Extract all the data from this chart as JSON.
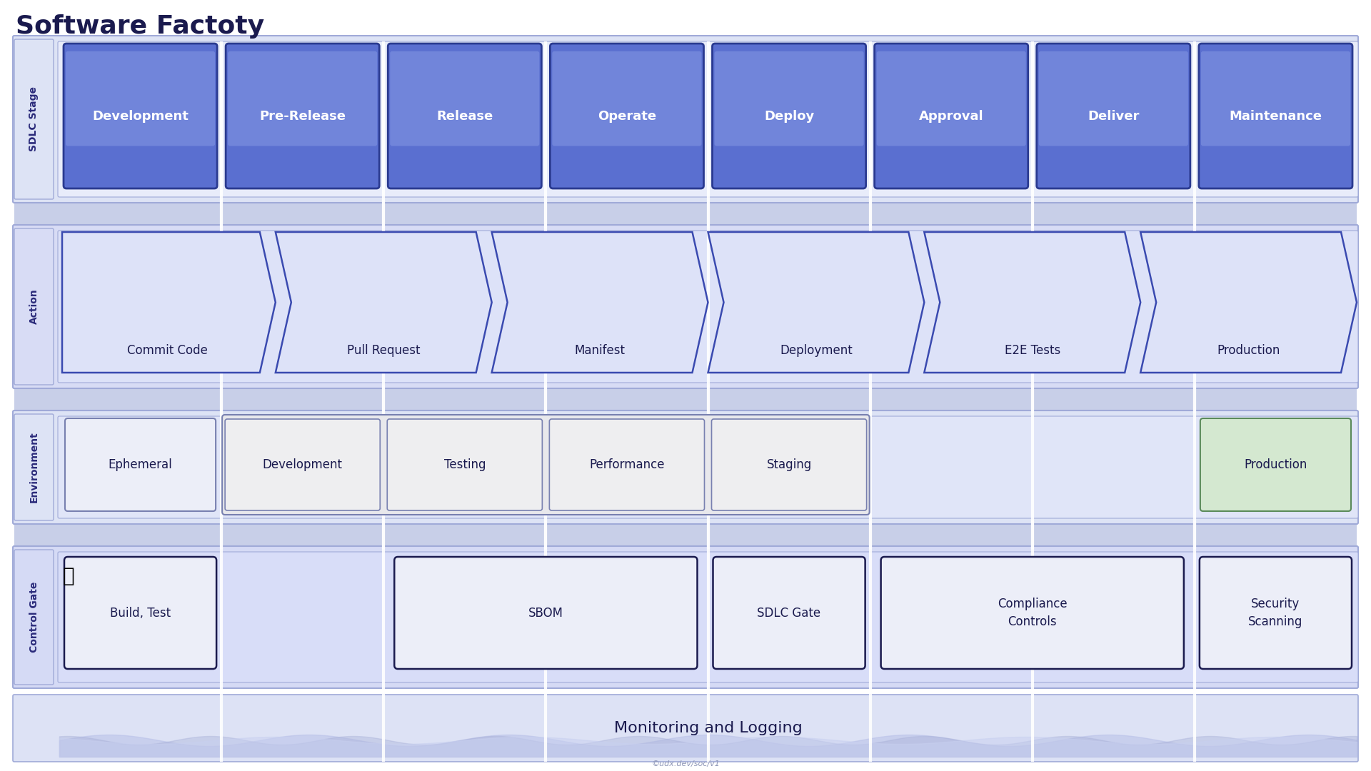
{
  "title": "Software Factoty",
  "title_color": "#1a1a4e",
  "title_fontsize": 26,
  "bg_color": "#ffffff",
  "sdlc_stages": [
    "Development",
    "Pre-Release",
    "Release",
    "Operate",
    "Deploy",
    "Approval",
    "Deliver",
    "Maintenance"
  ],
  "sdlc_row_bg": "#dde3f5",
  "sdlc_row_inner_bg": "#e8ecfa",
  "sdlc_box_color_top": "#7b8fdf",
  "sdlc_box_color_bot": "#5a6fd0",
  "sdlc_box_border": "#2a3a90",
  "sdlc_text_color": "#ffffff",
  "action_row_bg": "#d8dcf5",
  "action_row_inner_bg": "#dde2f8",
  "action_items": [
    "Commit Code",
    "Pull Request",
    "Manifest",
    "Deployment",
    "E2E Tests",
    "Production"
  ],
  "action_box_color": "#dde2f8",
  "action_box_border": "#3a4ab0",
  "action_text_color": "#1a1a4e",
  "env_row_bg": "#dde3f5",
  "env_row_inner_bg": "#e0e5f8",
  "env_items_left": [
    "Ephemeral"
  ],
  "env_items_group": [
    "Development",
    "Testing",
    "Performance",
    "Staging"
  ],
  "env_item_prod": "Production",
  "env_box_color_ephemeral": "#eceef8",
  "env_box_color_group": "#eeeef0",
  "env_box_color_prod": "#d4e8d0",
  "env_box_border": "#7880b0",
  "env_text_color": "#1a1a4e",
  "ctrl_row_bg": "#d5daf5",
  "ctrl_row_inner_bg": "#d8ddf8",
  "control_items": [
    "Build, Test",
    "SBOM",
    "SDLC Gate",
    "Compliance\nControls",
    "Security\nScanning"
  ],
  "control_box_color": "#eceef8",
  "control_box_border": "#1a1a4e",
  "control_text_color": "#1a1a4e",
  "monitoring_text": "Monitoring and Logging",
  "monitoring_bg": "#dde2f5",
  "monitoring_wave_color1": "#b8c0e8",
  "monitoring_wave_color2": "#c8d0f0",
  "footer_text": "©udx.dev/soc/v1",
  "row_label_color": "#2a2a7a",
  "separator_color": "#a0aad8",
  "vertical_line_color": "#ffffff",
  "gap_color": "#c8cfe8"
}
